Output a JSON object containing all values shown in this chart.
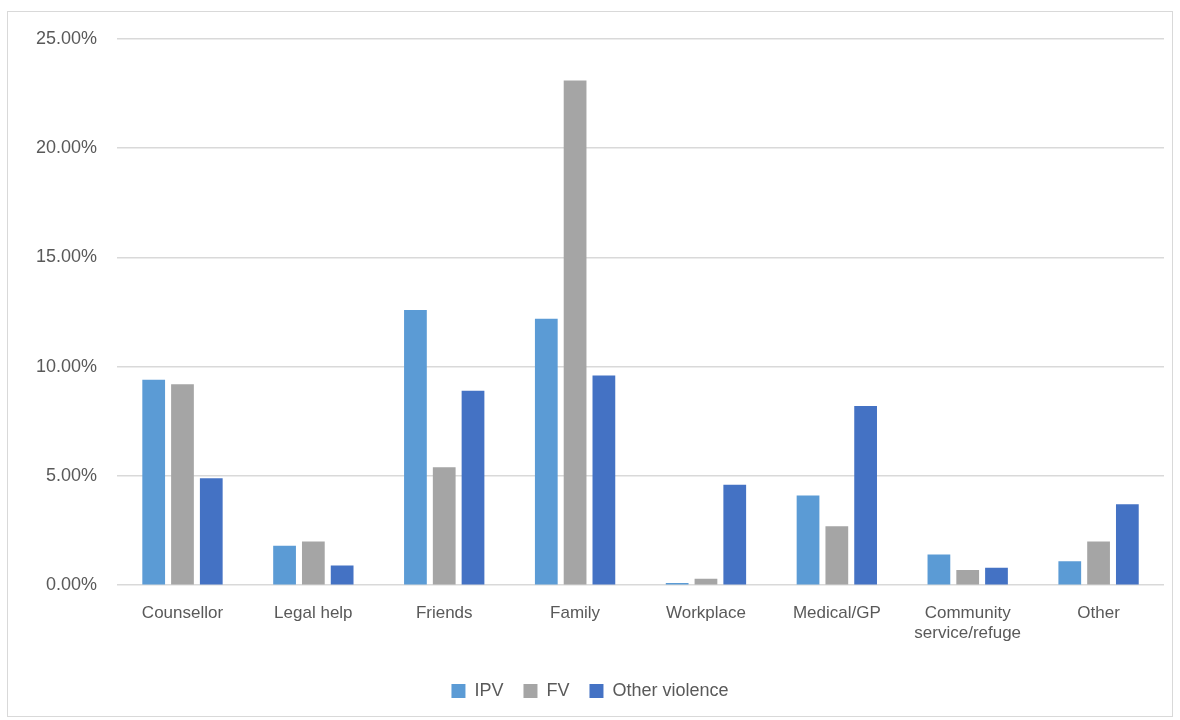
{
  "chart_data": {
    "type": "bar",
    "categories": [
      "Counsellor",
      "Legal help",
      "Friends",
      "Family",
      "Workplace",
      "Medical/GP",
      "Community service/refuge",
      "Other"
    ],
    "series": [
      {
        "name": "IPV",
        "color": "#5b9bd5",
        "values": [
          9.4,
          1.8,
          12.6,
          12.2,
          0.1,
          4.1,
          1.4,
          1.1
        ]
      },
      {
        "name": "FV",
        "color": "#a5a5a5",
        "values": [
          9.2,
          2.0,
          5.4,
          23.1,
          0.3,
          2.7,
          0.7,
          2.0
        ]
      },
      {
        "name": "Other violence",
        "color": "#4472c4",
        "values": [
          4.9,
          0.9,
          8.9,
          9.6,
          4.6,
          8.2,
          0.8,
          3.7
        ]
      }
    ],
    "ylim": [
      0,
      25
    ],
    "yticks": [
      {
        "value": 0,
        "label": "0.00%"
      },
      {
        "value": 5,
        "label": "5.00%"
      },
      {
        "value": 10,
        "label": "10.00%"
      },
      {
        "value": 15,
        "label": "15.00%"
      },
      {
        "value": 20,
        "label": "20.00%"
      },
      {
        "value": 25,
        "label": "25.00%"
      }
    ],
    "grid": "y",
    "legend": "bottom"
  }
}
